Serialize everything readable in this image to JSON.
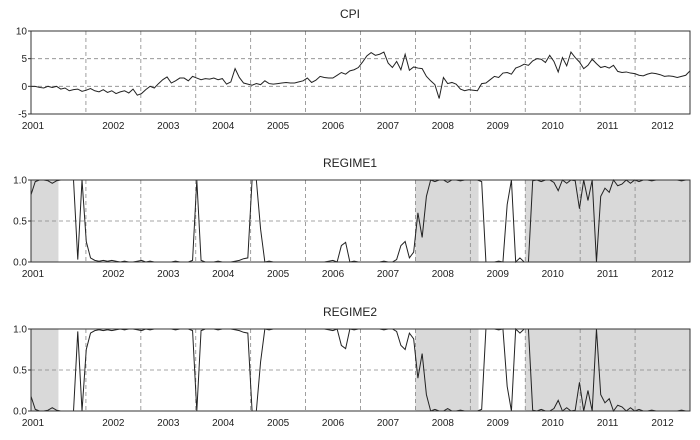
{
  "chart_data": [
    {
      "type": "line",
      "title": "CPI",
      "xlabel": "",
      "ylabel": "",
      "x_ticks": [
        "2001",
        "2002",
        "2003",
        "2004",
        "2005",
        "2006",
        "2007",
        "2008",
        "2009",
        "2010",
        "2011",
        "2012"
      ],
      "y_ticks": [
        "10",
        "5",
        "0",
        "-5"
      ],
      "ylim": [
        -5,
        10
      ],
      "grid": true,
      "shading": false,
      "series": [
        {
          "values": [
            0,
            0,
            -0.2,
            -0.3,
            0,
            -0.2,
            0,
            -0.5,
            -0.3,
            -0.8,
            -0.6,
            -0.5,
            -0.9,
            -0.7,
            -0.4,
            -0.8,
            -1.0,
            -0.6,
            -1.1,
            -0.8,
            -1.3,
            -1.0,
            -0.8,
            -1.2,
            -0.5,
            -1.6,
            -1.3,
            -0.6,
            0.0,
            -0.3,
            0.5,
            1.2,
            1.7,
            0.6,
            1.0,
            1.5,
            1.5,
            1.0,
            1.8,
            1.5,
            1.2,
            1.4,
            1.3,
            1.5,
            1.2,
            1.4,
            0.4,
            0.8,
            3.2,
            1.6,
            0.6,
            0.4,
            0.2,
            0.5,
            0.3,
            1.0,
            0.5,
            0.4,
            0.5,
            0.6,
            0.7,
            0.6,
            0.6,
            0.8,
            1.0,
            1.5,
            0.7,
            1.1,
            1.8,
            1.6,
            1.5,
            1.5,
            2.0,
            2.5,
            2.2,
            2.8,
            3.0,
            3.4,
            4.4,
            5.5,
            6.1,
            5.6,
            5.8,
            6.2,
            4.2,
            3.4,
            4.5,
            3.0,
            5.8,
            2.9,
            3.5,
            3.3,
            3.2,
            1.8,
            1.0,
            0.3,
            -2.2,
            1.6,
            0.5,
            0.7,
            0.4,
            -0.5,
            -0.8,
            -0.6,
            -0.7,
            -0.8,
            0.5,
            0.6,
            1.2,
            1.8,
            1.6,
            2.4,
            2.5,
            2.2,
            3.3,
            3.6,
            4.0,
            3.8,
            4.6,
            5.0,
            4.9,
            4.3,
            5.6,
            4.5,
            2.6,
            5.2,
            3.7,
            6.2,
            5.2,
            4.4,
            3.2,
            3.8,
            4.9,
            4.1,
            3.4,
            3.6,
            3.3,
            3.8,
            2.7,
            2.5,
            2.6,
            2.4,
            2.3,
            2.0,
            1.9,
            2.2,
            2.4,
            2.3,
            2.1,
            1.8,
            1.9,
            1.8,
            1.6,
            1.8,
            2.0,
            2.8
          ]
        }
      ]
    },
    {
      "type": "line",
      "title": "REGIME1",
      "xlabel": "",
      "ylabel": "",
      "x_ticks": [
        "2001",
        "2002",
        "2003",
        "2004",
        "2005",
        "2006",
        "2007",
        "2008",
        "2009",
        "2010",
        "2011",
        "2012"
      ],
      "y_ticks": [
        "1.0",
        "0.5",
        "0.0"
      ],
      "ylim": [
        0,
        1
      ],
      "grid": true,
      "shading": true,
      "shaded_periods": [
        {
          "start": 2001.0,
          "end": 2001.5
        },
        {
          "start": 2008.0,
          "end": 2009.15
        },
        {
          "start": 2010.0,
          "end": 2012.99
        }
      ],
      "series": [
        {
          "values": [
            0.82,
            0.98,
            1.0,
            1.0,
            0.99,
            0.96,
            0.99,
            1.0,
            1.0,
            1.0,
            1.0,
            0.03,
            1.0,
            0.25,
            0.05,
            0.02,
            0.01,
            0.02,
            0.01,
            0.02,
            0.01,
            0.0,
            0.01,
            0.0,
            0.0,
            0.01,
            0.02,
            0.0,
            0.01,
            0.0,
            0.0,
            0.0,
            0.0,
            0.0,
            0.01,
            0.0,
            0.0,
            0.0,
            0.02,
            1.0,
            0.02,
            0.0,
            0.0,
            0.0,
            0.01,
            0.0,
            0.0,
            0.0,
            0.01,
            0.02,
            0.04,
            0.05,
            1.0,
            1.0,
            0.4,
            0.0,
            0.01,
            0.0,
            0.0,
            0.0,
            0.0,
            0.0,
            0.0,
            0.0,
            0.0,
            0.0,
            0.0,
            0.0,
            0.0,
            0.0,
            0.01,
            0.02,
            0.0,
            0.2,
            0.24,
            0.0,
            0.01,
            0.0,
            0.0,
            0.0,
            0.0,
            0.0,
            0.0,
            0.01,
            0.0,
            0.0,
            0.03,
            0.2,
            0.25,
            0.05,
            0.12,
            0.6,
            0.3,
            0.8,
            1.0,
            0.98,
            1.0,
            1.0,
            0.97,
            1.0,
            1.0,
            0.99,
            1.0,
            1.0,
            1.0,
            1.0,
            0.98,
            0.0,
            0.0,
            0.0,
            0.01,
            0.0,
            0.7,
            1.0,
            0.0,
            0.05,
            0.0,
            0.0,
            0.99,
            1.0,
            0.98,
            1.0,
            1.0,
            0.97,
            0.87,
            1.0,
            0.96,
            1.0,
            0.99,
            0.65,
            1.0,
            0.75,
            1.0,
            0.0,
            0.8,
            0.9,
            0.85,
            1.0,
            0.93,
            0.95,
            1.0,
            0.96,
            1.0,
            0.98,
            1.0,
            1.0,
            0.99,
            1.0,
            1.0,
            1.0,
            1.0,
            1.0,
            1.0,
            0.99,
            1.0,
            1.0
          ]
        }
      ]
    },
    {
      "type": "line",
      "title": "REGIME2",
      "xlabel": "",
      "ylabel": "",
      "x_ticks": [
        "2001",
        "2002",
        "2003",
        "2004",
        "2005",
        "2006",
        "2007",
        "2008",
        "2009",
        "2010",
        "2011",
        "2012"
      ],
      "y_ticks": [
        "1.0",
        "0.5",
        "0.0"
      ],
      "ylim": [
        0,
        1
      ],
      "grid": true,
      "shading": true,
      "shaded_periods": [
        {
          "start": 2001.0,
          "end": 2001.5
        },
        {
          "start": 2008.0,
          "end": 2009.15
        },
        {
          "start": 2010.0,
          "end": 2012.99
        }
      ],
      "series": [
        {
          "values": [
            0.18,
            0.02,
            0.0,
            0.0,
            0.01,
            0.04,
            0.01,
            0.0,
            0.0,
            0.0,
            0.0,
            0.97,
            0.0,
            0.75,
            0.95,
            0.98,
            0.99,
            0.98,
            0.99,
            0.98,
            0.99,
            1.0,
            0.99,
            1.0,
            1.0,
            0.99,
            0.98,
            1.0,
            0.99,
            1.0,
            1.0,
            1.0,
            1.0,
            1.0,
            0.99,
            1.0,
            1.0,
            1.0,
            0.98,
            0.0,
            0.98,
            1.0,
            1.0,
            1.0,
            0.99,
            1.0,
            1.0,
            1.0,
            0.99,
            0.98,
            0.96,
            0.95,
            0.0,
            0.0,
            0.6,
            1.0,
            0.99,
            1.0,
            1.0,
            1.0,
            1.0,
            1.0,
            1.0,
            1.0,
            1.0,
            1.0,
            1.0,
            1.0,
            1.0,
            1.0,
            0.99,
            0.98,
            1.0,
            0.8,
            0.76,
            1.0,
            0.99,
            1.0,
            1.0,
            1.0,
            1.0,
            1.0,
            1.0,
            0.99,
            1.0,
            1.0,
            0.97,
            0.8,
            0.75,
            0.95,
            0.88,
            0.4,
            0.7,
            0.2,
            0.0,
            0.02,
            0.0,
            0.0,
            0.03,
            0.0,
            0.0,
            0.01,
            0.0,
            0.0,
            0.0,
            0.0,
            0.02,
            1.0,
            1.0,
            1.0,
            0.99,
            1.0,
            0.3,
            0.0,
            1.0,
            0.95,
            1.0,
            1.0,
            0.01,
            0.0,
            0.02,
            0.0,
            0.0,
            0.03,
            0.13,
            0.0,
            0.04,
            0.0,
            0.01,
            0.35,
            0.0,
            0.25,
            0.0,
            1.0,
            0.2,
            0.1,
            0.15,
            0.0,
            0.07,
            0.05,
            0.0,
            0.04,
            0.0,
            0.02,
            0.0,
            0.0,
            0.01,
            0.0,
            0.0,
            0.0,
            0.0,
            0.0,
            0.0,
            0.01,
            0.0,
            0.0
          ]
        }
      ]
    }
  ]
}
